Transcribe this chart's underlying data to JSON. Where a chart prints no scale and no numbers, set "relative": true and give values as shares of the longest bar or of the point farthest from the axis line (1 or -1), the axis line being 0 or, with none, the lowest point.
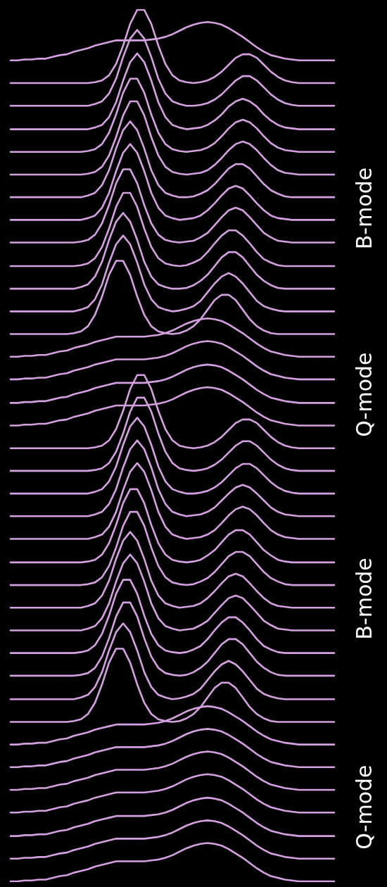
{
  "chart_data": {
    "type": "line",
    "relative": true,
    "marker": "none",
    "annotations": [
      "B-mode",
      "Q-mode",
      "B-mode",
      "Q-mode"
    ],
    "categories": [
      null,
      null,
      null,
      null,
      null,
      null,
      null,
      null,
      null,
      null,
      null,
      null,
      null,
      null,
      null,
      null,
      null,
      null,
      null,
      null,
      null,
      null,
      null,
      null,
      null,
      null,
      null,
      null,
      null,
      null,
      null,
      null,
      null,
      null,
      null,
      null,
      null,
      null,
      null,
      null,
      null,
      null,
      null,
      null,
      null,
      null,
      null
    ],
    "series": [
      {
        "color": "#d4a0e0",
        "values": [
          0.942,
          0.942,
          0.943,
          0.943,
          0.944,
          0.944,
          0.946,
          0.948,
          0.949,
          0.952,
          0.954,
          0.956,
          0.959,
          0.961,
          0.963,
          0.965,
          0.965,
          0.965,
          0.965,
          0.965,
          0.966,
          0.967,
          0.969,
          0.972,
          0.976,
          0.98,
          0.983,
          0.985,
          0.986,
          0.985,
          0.983,
          0.979,
          0.974,
          0.969,
          0.963,
          0.957,
          0.952,
          0.948,
          0.946,
          0.944,
          0.943,
          0.942,
          0.942,
          0.942,
          0.942,
          0.942,
          0.942
        ]
      },
      {
        "color": "#d4a0e0",
        "values": [
          0.916,
          0.916,
          0.916,
          0.916,
          0.916,
          0.916,
          0.916,
          0.916,
          0.916,
          0.916,
          0.916,
          0.916,
          0.917,
          0.919,
          0.925,
          0.938,
          0.959,
          0.984,
          1,
          1,
          0.984,
          0.959,
          0.938,
          0.925,
          0.919,
          0.917,
          0.916,
          0.917,
          0.919,
          0.923,
          0.929,
          0.937,
          0.945,
          0.949,
          0.949,
          0.945,
          0.937,
          0.929,
          0.923,
          0.919,
          0.917,
          0.916,
          0.916,
          0.916,
          0.916,
          0.916,
          0.916
        ]
      },
      {
        "color": "#d4a0e0",
        "values": [
          0.89,
          0.89,
          0.89,
          0.89,
          0.89,
          0.89,
          0.89,
          0.89,
          0.89,
          0.89,
          0.89,
          0.89,
          0.892,
          0.895,
          0.904,
          0.921,
          0.946,
          0.967,
          0.977,
          0.967,
          0.946,
          0.921,
          0.904,
          0.895,
          0.892,
          0.89,
          0.89,
          0.891,
          0.893,
          0.897,
          0.903,
          0.911,
          0.919,
          0.924,
          0.924,
          0.919,
          0.911,
          0.903,
          0.897,
          0.893,
          0.891,
          0.89,
          0.89,
          0.89,
          0.89,
          0.89,
          0.89
        ]
      },
      {
        "color": "#d4a0e0",
        "values": [
          0.863,
          0.863,
          0.863,
          0.863,
          0.863,
          0.863,
          0.863,
          0.863,
          0.863,
          0.863,
          0.863,
          0.863,
          0.865,
          0.868,
          0.877,
          0.894,
          0.919,
          0.94,
          0.95,
          0.94,
          0.919,
          0.894,
          0.877,
          0.868,
          0.865,
          0.863,
          0.864,
          0.865,
          0.868,
          0.873,
          0.88,
          0.889,
          0.895,
          0.898,
          0.895,
          0.889,
          0.88,
          0.873,
          0.868,
          0.865,
          0.864,
          0.863,
          0.863,
          0.863,
          0.863,
          0.863,
          0.863
        ]
      },
      {
        "color": "#d4a0e0",
        "values": [
          0.837,
          0.837,
          0.837,
          0.837,
          0.837,
          0.837,
          0.837,
          0.837,
          0.837,
          0.837,
          0.837,
          0.838,
          0.84,
          0.846,
          0.859,
          0.88,
          0.905,
          0.921,
          0.921,
          0.905,
          0.88,
          0.859,
          0.846,
          0.84,
          0.838,
          0.837,
          0.838,
          0.839,
          0.842,
          0.847,
          0.855,
          0.864,
          0.871,
          0.874,
          0.871,
          0.864,
          0.855,
          0.847,
          0.842,
          0.839,
          0.838,
          0.837,
          0.837,
          0.837,
          0.837,
          0.837,
          0.837
        ]
      },
      {
        "color": "#d4a0e0",
        "values": [
          0.811,
          0.811,
          0.811,
          0.811,
          0.811,
          0.811,
          0.811,
          0.811,
          0.811,
          0.811,
          0.811,
          0.812,
          0.814,
          0.82,
          0.833,
          0.854,
          0.879,
          0.895,
          0.895,
          0.879,
          0.854,
          0.833,
          0.82,
          0.814,
          0.812,
          0.811,
          0.812,
          0.813,
          0.816,
          0.822,
          0.83,
          0.839,
          0.846,
          0.849,
          0.846,
          0.839,
          0.83,
          0.822,
          0.816,
          0.813,
          0.812,
          0.811,
          0.811,
          0.811,
          0.811,
          0.811,
          0.811
        ]
      },
      {
        "color": "#d4a0e0",
        "values": [
          0.785,
          0.785,
          0.785,
          0.785,
          0.785,
          0.785,
          0.785,
          0.785,
          0.785,
          0.785,
          0.785,
          0.787,
          0.79,
          0.799,
          0.816,
          0.841,
          0.862,
          0.872,
          0.862,
          0.841,
          0.816,
          0.799,
          0.79,
          0.787,
          0.785,
          0.785,
          0.786,
          0.789,
          0.793,
          0.8,
          0.809,
          0.818,
          0.823,
          0.823,
          0.818,
          0.809,
          0.8,
          0.793,
          0.789,
          0.786,
          0.785,
          0.785,
          0.785,
          0.785,
          0.785,
          0.785,
          0.785
        ]
      },
      {
        "color": "#d4a0e0",
        "values": [
          0.759,
          0.759,
          0.759,
          0.759,
          0.759,
          0.759,
          0.759,
          0.759,
          0.759,
          0.759,
          0.759,
          0.761,
          0.764,
          0.773,
          0.79,
          0.815,
          0.836,
          0.846,
          0.836,
          0.815,
          0.79,
          0.773,
          0.764,
          0.761,
          0.759,
          0.76,
          0.761,
          0.764,
          0.77,
          0.778,
          0.787,
          0.795,
          0.798,
          0.795,
          0.787,
          0.778,
          0.77,
          0.764,
          0.761,
          0.76,
          0.759,
          0.759,
          0.759,
          0.759,
          0.759,
          0.759,
          0.759
        ]
      },
      {
        "color": "#d4a0e0",
        "values": [
          0.733,
          0.733,
          0.733,
          0.733,
          0.733,
          0.733,
          0.733,
          0.733,
          0.733,
          0.733,
          0.734,
          0.736,
          0.742,
          0.755,
          0.776,
          0.801,
          0.817,
          0.817,
          0.801,
          0.776,
          0.755,
          0.742,
          0.736,
          0.734,
          0.733,
          0.734,
          0.735,
          0.739,
          0.744,
          0.753,
          0.762,
          0.77,
          0.773,
          0.77,
          0.762,
          0.753,
          0.744,
          0.739,
          0.735,
          0.734,
          0.733,
          0.733,
          0.733,
          0.733,
          0.733,
          0.733,
          0.733
        ]
      },
      {
        "color": "#d4a0e0",
        "values": [
          0.706,
          0.706,
          0.706,
          0.706,
          0.706,
          0.706,
          0.706,
          0.706,
          0.706,
          0.706,
          0.707,
          0.709,
          0.715,
          0.728,
          0.749,
          0.774,
          0.79,
          0.79,
          0.774,
          0.749,
          0.728,
          0.715,
          0.709,
          0.707,
          0.706,
          0.707,
          0.71,
          0.714,
          0.722,
          0.732,
          0.741,
          0.747,
          0.747,
          0.741,
          0.732,
          0.722,
          0.714,
          0.71,
          0.707,
          0.706,
          0.706,
          0.706,
          0.706,
          0.706,
          0.706,
          0.706,
          0.706
        ]
      },
      {
        "color": "#d4a0e0",
        "values": [
          0.68,
          0.68,
          0.68,
          0.68,
          0.68,
          0.68,
          0.68,
          0.68,
          0.68,
          0.68,
          0.682,
          0.685,
          0.694,
          0.711,
          0.736,
          0.757,
          0.767,
          0.757,
          0.736,
          0.711,
          0.694,
          0.685,
          0.682,
          0.68,
          0.68,
          0.681,
          0.684,
          0.689,
          0.696,
          0.706,
          0.716,
          0.722,
          0.722,
          0.716,
          0.706,
          0.696,
          0.689,
          0.684,
          0.681,
          0.68,
          0.68,
          0.68,
          0.68,
          0.68,
          0.68,
          0.68,
          0.68
        ]
      },
      {
        "color": "#d4a0e0",
        "values": [
          0.654,
          0.654,
          0.654,
          0.654,
          0.654,
          0.654,
          0.654,
          0.654,
          0.654,
          0.654,
          0.656,
          0.659,
          0.668,
          0.685,
          0.71,
          0.731,
          0.741,
          0.731,
          0.71,
          0.685,
          0.668,
          0.659,
          0.656,
          0.654,
          0.655,
          0.657,
          0.66,
          0.666,
          0.676,
          0.686,
          0.694,
          0.698,
          0.694,
          0.686,
          0.676,
          0.666,
          0.66,
          0.657,
          0.655,
          0.654,
          0.654,
          0.654,
          0.654,
          0.654,
          0.654,
          0.654,
          0.654
        ]
      },
      {
        "color": "#d4a0e0",
        "values": [
          0.628,
          0.628,
          0.628,
          0.628,
          0.628,
          0.628,
          0.628,
          0.628,
          0.628,
          0.629,
          0.631,
          0.637,
          0.65,
          0.671,
          0.696,
          0.712,
          0.712,
          0.696,
          0.671,
          0.65,
          0.637,
          0.631,
          0.629,
          0.628,
          0.629,
          0.632,
          0.637,
          0.645,
          0.656,
          0.667,
          0.673,
          0.673,
          0.667,
          0.656,
          0.645,
          0.637,
          0.632,
          0.629,
          0.628,
          0.628,
          0.628,
          0.628,
          0.628,
          0.628,
          0.628,
          0.628,
          0.628
        ]
      },
      {
        "color": "#d4a0e0",
        "values": [
          0.602,
          0.602,
          0.603,
          0.603,
          0.604,
          0.604,
          0.606,
          0.608,
          0.609,
          0.612,
          0.614,
          0.616,
          0.619,
          0.621,
          0.623,
          0.625,
          0.625,
          0.625,
          0.625,
          0.625,
          0.626,
          0.627,
          0.629,
          0.632,
          0.636,
          0.64,
          0.643,
          0.645,
          0.646,
          0.645,
          0.643,
          0.639,
          0.634,
          0.629,
          0.623,
          0.617,
          0.612,
          0.608,
          0.606,
          0.604,
          0.603,
          0.602,
          0.602,
          0.602,
          0.602,
          0.602,
          0.602
        ]
      },
      {
        "color": "#d4a0e0",
        "values": [
          0.576,
          0.576,
          0.577,
          0.577,
          0.578,
          0.578,
          0.58,
          0.582,
          0.583,
          0.586,
          0.588,
          0.59,
          0.593,
          0.595,
          0.597,
          0.599,
          0.599,
          0.599,
          0.599,
          0.599,
          0.6,
          0.601,
          0.603,
          0.606,
          0.61,
          0.614,
          0.617,
          0.619,
          0.62,
          0.619,
          0.617,
          0.613,
          0.608,
          0.603,
          0.597,
          0.591,
          0.586,
          0.582,
          0.58,
          0.578,
          0.577,
          0.576,
          0.576,
          0.576,
          0.576,
          0.576,
          0.576
        ]
      },
      {
        "color": "#d4a0e0",
        "values": [
          0.549,
          0.549,
          0.55,
          0.55,
          0.551,
          0.551,
          0.553,
          0.555,
          0.556,
          0.559,
          0.561,
          0.563,
          0.566,
          0.568,
          0.57,
          0.572,
          0.572,
          0.572,
          0.572,
          0.572,
          0.573,
          0.574,
          0.576,
          0.579,
          0.583,
          0.587,
          0.59,
          0.592,
          0.593,
          0.592,
          0.59,
          0.586,
          0.581,
          0.576,
          0.57,
          0.564,
          0.559,
          0.555,
          0.553,
          0.551,
          0.55,
          0.549,
          0.549,
          0.549,
          0.549,
          0.549,
          0.549
        ]
      },
      {
        "color": "#d4a0e0",
        "values": [
          0.523,
          0.523,
          0.524,
          0.524,
          0.525,
          0.525,
          0.527,
          0.529,
          0.53,
          0.533,
          0.535,
          0.537,
          0.54,
          0.542,
          0.544,
          0.546,
          0.546,
          0.546,
          0.546,
          0.546,
          0.547,
          0.548,
          0.55,
          0.553,
          0.557,
          0.561,
          0.564,
          0.566,
          0.567,
          0.566,
          0.564,
          0.56,
          0.555,
          0.55,
          0.544,
          0.538,
          0.533,
          0.529,
          0.527,
          0.525,
          0.524,
          0.523,
          0.523,
          0.523,
          0.523,
          0.523,
          0.523
        ]
      },
      {
        "color": "#d4a0e0",
        "values": [
          0.497,
          0.497,
          0.497,
          0.497,
          0.497,
          0.497,
          0.497,
          0.497,
          0.497,
          0.497,
          0.497,
          0.497,
          0.498,
          0.5,
          0.506,
          0.519,
          0.54,
          0.565,
          0.581,
          0.581,
          0.565,
          0.54,
          0.519,
          0.506,
          0.5,
          0.498,
          0.497,
          0.498,
          0.5,
          0.504,
          0.51,
          0.518,
          0.526,
          0.53,
          0.53,
          0.526,
          0.518,
          0.51,
          0.504,
          0.5,
          0.498,
          0.497,
          0.497,
          0.497,
          0.497,
          0.497,
          0.497
        ]
      },
      {
        "color": "#d4a0e0",
        "values": [
          0.471,
          0.471,
          0.471,
          0.471,
          0.471,
          0.471,
          0.471,
          0.471,
          0.471,
          0.471,
          0.471,
          0.471,
          0.472,
          0.474,
          0.48,
          0.493,
          0.514,
          0.539,
          0.555,
          0.555,
          0.539,
          0.514,
          0.493,
          0.48,
          0.474,
          0.472,
          0.471,
          0.472,
          0.474,
          0.478,
          0.484,
          0.492,
          0.5,
          0.505,
          0.505,
          0.5,
          0.492,
          0.484,
          0.478,
          0.474,
          0.472,
          0.471,
          0.471,
          0.471,
          0.471,
          0.471,
          0.471
        ]
      },
      {
        "color": "#d4a0e0",
        "values": [
          0.445,
          0.445,
          0.445,
          0.445,
          0.445,
          0.445,
          0.445,
          0.445,
          0.445,
          0.445,
          0.445,
          0.445,
          0.447,
          0.45,
          0.459,
          0.476,
          0.501,
          0.522,
          0.532,
          0.522,
          0.501,
          0.476,
          0.459,
          0.45,
          0.447,
          0.445,
          0.445,
          0.446,
          0.448,
          0.452,
          0.458,
          0.466,
          0.474,
          0.479,
          0.479,
          0.474,
          0.466,
          0.458,
          0.452,
          0.448,
          0.446,
          0.445,
          0.445,
          0.445,
          0.445,
          0.445,
          0.445
        ]
      },
      {
        "color": "#d4a0e0",
        "values": [
          0.419,
          0.419,
          0.419,
          0.419,
          0.419,
          0.419,
          0.419,
          0.419,
          0.419,
          0.419,
          0.419,
          0.419,
          0.421,
          0.424,
          0.433,
          0.45,
          0.475,
          0.496,
          0.506,
          0.496,
          0.475,
          0.45,
          0.433,
          0.424,
          0.421,
          0.419,
          0.42,
          0.421,
          0.424,
          0.429,
          0.437,
          0.445,
          0.452,
          0.455,
          0.452,
          0.445,
          0.437,
          0.429,
          0.424,
          0.421,
          0.42,
          0.419,
          0.419,
          0.419,
          0.419,
          0.419,
          0.419
        ]
      },
      {
        "color": "#d4a0e0",
        "values": [
          0.393,
          0.393,
          0.393,
          0.393,
          0.393,
          0.393,
          0.393,
          0.393,
          0.393,
          0.393,
          0.393,
          0.393,
          0.395,
          0.398,
          0.407,
          0.424,
          0.449,
          0.47,
          0.48,
          0.47,
          0.449,
          0.424,
          0.407,
          0.398,
          0.395,
          0.393,
          0.394,
          0.395,
          0.398,
          0.403,
          0.411,
          0.42,
          0.427,
          0.43,
          0.427,
          0.42,
          0.411,
          0.403,
          0.398,
          0.395,
          0.394,
          0.393,
          0.393,
          0.393,
          0.393,
          0.393,
          0.393
        ]
      },
      {
        "color": "#d4a0e0",
        "values": [
          0.366,
          0.366,
          0.366,
          0.366,
          0.366,
          0.366,
          0.366,
          0.366,
          0.366,
          0.366,
          0.366,
          0.367,
          0.369,
          0.375,
          0.388,
          0.409,
          0.434,
          0.45,
          0.45,
          0.434,
          0.409,
          0.388,
          0.375,
          0.369,
          0.367,
          0.366,
          0.367,
          0.369,
          0.374,
          0.38,
          0.389,
          0.398,
          0.403,
          0.403,
          0.398,
          0.389,
          0.38,
          0.374,
          0.369,
          0.367,
          0.366,
          0.366,
          0.366,
          0.366,
          0.366,
          0.366,
          0.366
        ]
      },
      {
        "color": "#d4a0e0",
        "values": [
          0.34,
          0.34,
          0.34,
          0.34,
          0.34,
          0.34,
          0.34,
          0.34,
          0.34,
          0.34,
          0.34,
          0.341,
          0.343,
          0.349,
          0.362,
          0.383,
          0.408,
          0.424,
          0.424,
          0.408,
          0.383,
          0.362,
          0.349,
          0.343,
          0.341,
          0.34,
          0.341,
          0.344,
          0.348,
          0.355,
          0.364,
          0.373,
          0.378,
          0.378,
          0.373,
          0.364,
          0.355,
          0.348,
          0.344,
          0.341,
          0.34,
          0.34,
          0.34,
          0.34,
          0.34,
          0.34,
          0.34
        ]
      },
      {
        "color": "#d4a0e0",
        "values": [
          0.314,
          0.314,
          0.314,
          0.314,
          0.314,
          0.314,
          0.314,
          0.314,
          0.314,
          0.314,
          0.314,
          0.316,
          0.319,
          0.328,
          0.345,
          0.37,
          0.391,
          0.401,
          0.391,
          0.37,
          0.345,
          0.328,
          0.319,
          0.316,
          0.314,
          0.315,
          0.316,
          0.319,
          0.325,
          0.333,
          0.342,
          0.35,
          0.353,
          0.35,
          0.342,
          0.333,
          0.325,
          0.319,
          0.316,
          0.315,
          0.314,
          0.314,
          0.314,
          0.314,
          0.314,
          0.314,
          0.314
        ]
      },
      {
        "color": "#d4a0e0",
        "values": [
          0.288,
          0.288,
          0.288,
          0.288,
          0.288,
          0.288,
          0.288,
          0.288,
          0.288,
          0.288,
          0.288,
          0.29,
          0.293,
          0.302,
          0.319,
          0.344,
          0.365,
          0.375,
          0.365,
          0.344,
          0.319,
          0.302,
          0.293,
          0.29,
          0.288,
          0.289,
          0.29,
          0.294,
          0.299,
          0.308,
          0.317,
          0.325,
          0.328,
          0.325,
          0.317,
          0.308,
          0.299,
          0.294,
          0.29,
          0.289,
          0.288,
          0.288,
          0.288,
          0.288,
          0.288,
          0.288,
          0.288
        ]
      },
      {
        "color": "#d4a0e0",
        "values": [
          0.262,
          0.262,
          0.262,
          0.262,
          0.262,
          0.262,
          0.262,
          0.262,
          0.262,
          0.262,
          0.263,
          0.265,
          0.271,
          0.284,
          0.305,
          0.33,
          0.346,
          0.346,
          0.33,
          0.305,
          0.284,
          0.271,
          0.265,
          0.263,
          0.262,
          0.263,
          0.266,
          0.27,
          0.278,
          0.288,
          0.297,
          0.303,
          0.303,
          0.297,
          0.288,
          0.278,
          0.27,
          0.266,
          0.263,
          0.262,
          0.262,
          0.262,
          0.262,
          0.262,
          0.262,
          0.262,
          0.262
        ]
      },
      {
        "color": "#d4a0e0",
        "values": [
          0.236,
          0.236,
          0.236,
          0.236,
          0.236,
          0.236,
          0.236,
          0.236,
          0.236,
          0.236,
          0.237,
          0.239,
          0.245,
          0.258,
          0.279,
          0.304,
          0.32,
          0.32,
          0.304,
          0.279,
          0.258,
          0.245,
          0.239,
          0.237,
          0.236,
          0.237,
          0.24,
          0.245,
          0.252,
          0.262,
          0.272,
          0.278,
          0.278,
          0.272,
          0.262,
          0.252,
          0.245,
          0.24,
          0.237,
          0.236,
          0.236,
          0.236,
          0.236,
          0.236,
          0.236,
          0.236,
          0.236
        ]
      },
      {
        "color": "#d4a0e0",
        "values": [
          0.209,
          0.209,
          0.209,
          0.209,
          0.209,
          0.209,
          0.209,
          0.209,
          0.209,
          0.209,
          0.211,
          0.214,
          0.223,
          0.24,
          0.265,
          0.286,
          0.296,
          0.286,
          0.265,
          0.24,
          0.223,
          0.214,
          0.211,
          0.209,
          0.21,
          0.212,
          0.215,
          0.221,
          0.231,
          0.241,
          0.249,
          0.253,
          0.249,
          0.241,
          0.231,
          0.221,
          0.215,
          0.212,
          0.21,
          0.209,
          0.209,
          0.209,
          0.209,
          0.209,
          0.209,
          0.209,
          0.209
        ]
      },
      {
        "color": "#d4a0e0",
        "values": [
          0.183,
          0.183,
          0.183,
          0.183,
          0.183,
          0.183,
          0.183,
          0.183,
          0.183,
          0.184,
          0.186,
          0.192,
          0.205,
          0.226,
          0.251,
          0.267,
          0.267,
          0.251,
          0.226,
          0.205,
          0.192,
          0.186,
          0.184,
          0.183,
          0.184,
          0.187,
          0.192,
          0.2,
          0.211,
          0.222,
          0.228,
          0.228,
          0.222,
          0.211,
          0.2,
          0.192,
          0.187,
          0.184,
          0.183,
          0.183,
          0.183,
          0.183,
          0.183,
          0.183,
          0.183,
          0.183,
          0.183
        ]
      },
      {
        "color": "#d4a0e0",
        "values": [
          0.157,
          0.157,
          0.158,
          0.158,
          0.159,
          0.159,
          0.161,
          0.163,
          0.164,
          0.167,
          0.169,
          0.171,
          0.174,
          0.176,
          0.178,
          0.18,
          0.18,
          0.18,
          0.18,
          0.18,
          0.181,
          0.182,
          0.184,
          0.187,
          0.191,
          0.195,
          0.198,
          0.2,
          0.201,
          0.2,
          0.198,
          0.194,
          0.189,
          0.184,
          0.178,
          0.172,
          0.167,
          0.163,
          0.161,
          0.159,
          0.158,
          0.157,
          0.157,
          0.157,
          0.157,
          0.157,
          0.157
        ]
      },
      {
        "color": "#d4a0e0",
        "values": [
          0.131,
          0.131,
          0.132,
          0.132,
          0.133,
          0.133,
          0.135,
          0.137,
          0.138,
          0.141,
          0.143,
          0.145,
          0.148,
          0.15,
          0.152,
          0.154,
          0.154,
          0.154,
          0.154,
          0.154,
          0.155,
          0.156,
          0.158,
          0.161,
          0.165,
          0.169,
          0.172,
          0.174,
          0.175,
          0.174,
          0.172,
          0.168,
          0.163,
          0.158,
          0.152,
          0.146,
          0.141,
          0.137,
          0.135,
          0.133,
          0.132,
          0.131,
          0.131,
          0.131,
          0.131,
          0.131,
          0.131
        ]
      },
      {
        "color": "#d4a0e0",
        "values": [
          0.105,
          0.105,
          0.106,
          0.106,
          0.107,
          0.107,
          0.109,
          0.111,
          0.112,
          0.115,
          0.117,
          0.119,
          0.122,
          0.124,
          0.126,
          0.128,
          0.128,
          0.128,
          0.128,
          0.128,
          0.129,
          0.13,
          0.132,
          0.135,
          0.139,
          0.143,
          0.146,
          0.148,
          0.149,
          0.148,
          0.146,
          0.142,
          0.137,
          0.132,
          0.126,
          0.12,
          0.115,
          0.111,
          0.109,
          0.107,
          0.106,
          0.105,
          0.105,
          0.105,
          0.105,
          0.105,
          0.105
        ]
      },
      {
        "color": "#d4a0e0",
        "values": [
          0.079,
          0.079,
          0.08,
          0.08,
          0.081,
          0.081,
          0.083,
          0.085,
          0.086,
          0.089,
          0.091,
          0.093,
          0.096,
          0.098,
          0.1,
          0.102,
          0.102,
          0.102,
          0.102,
          0.102,
          0.103,
          0.104,
          0.106,
          0.109,
          0.113,
          0.117,
          0.12,
          0.122,
          0.123,
          0.122,
          0.12,
          0.116,
          0.111,
          0.106,
          0.1,
          0.094,
          0.089,
          0.085,
          0.083,
          0.081,
          0.08,
          0.079,
          0.079,
          0.079,
          0.079,
          0.079,
          0.079
        ]
      },
      {
        "color": "#d4a0e0",
        "values": [
          0.052,
          0.052,
          0.053,
          0.053,
          0.054,
          0.054,
          0.056,
          0.058,
          0.059,
          0.062,
          0.064,
          0.066,
          0.069,
          0.071,
          0.073,
          0.075,
          0.075,
          0.075,
          0.075,
          0.075,
          0.076,
          0.077,
          0.079,
          0.082,
          0.086,
          0.09,
          0.093,
          0.095,
          0.096,
          0.095,
          0.093,
          0.089,
          0.084,
          0.079,
          0.073,
          0.067,
          0.062,
          0.058,
          0.056,
          0.054,
          0.053,
          0.052,
          0.052,
          0.052,
          0.052,
          0.052,
          0.052
        ]
      },
      {
        "color": "#d4a0e0",
        "values": [
          0.026,
          0.026,
          0.027,
          0.027,
          0.028,
          0.028,
          0.03,
          0.032,
          0.033,
          0.036,
          0.038,
          0.04,
          0.043,
          0.045,
          0.047,
          0.049,
          0.049,
          0.049,
          0.049,
          0.049,
          0.05,
          0.051,
          0.053,
          0.056,
          0.06,
          0.064,
          0.067,
          0.069,
          0.07,
          0.069,
          0.067,
          0.063,
          0.058,
          0.053,
          0.047,
          0.041,
          0.036,
          0.032,
          0.03,
          0.028,
          0.027,
          0.026,
          0.026,
          0.026,
          0.026,
          0.026,
          0.026
        ]
      },
      {
        "color": "#d4a0e0",
        "values": [
          0,
          0,
          0.001,
          0.001,
          0.002,
          0.002,
          0.004,
          0.006,
          0.007,
          0.01,
          0.012,
          0.014,
          0.017,
          0.019,
          0.021,
          0.023,
          0.023,
          0.023,
          0.023,
          0.023,
          0.024,
          0.025,
          0.027,
          0.03,
          0.034,
          0.038,
          0.041,
          0.043,
          0.044,
          0.043,
          0.041,
          0.037,
          0.032,
          0.027,
          0.021,
          0.015,
          0.01,
          0.006,
          0.004,
          0.002,
          0.001,
          0,
          0,
          0,
          0,
          0,
          0
        ]
      }
    ]
  }
}
